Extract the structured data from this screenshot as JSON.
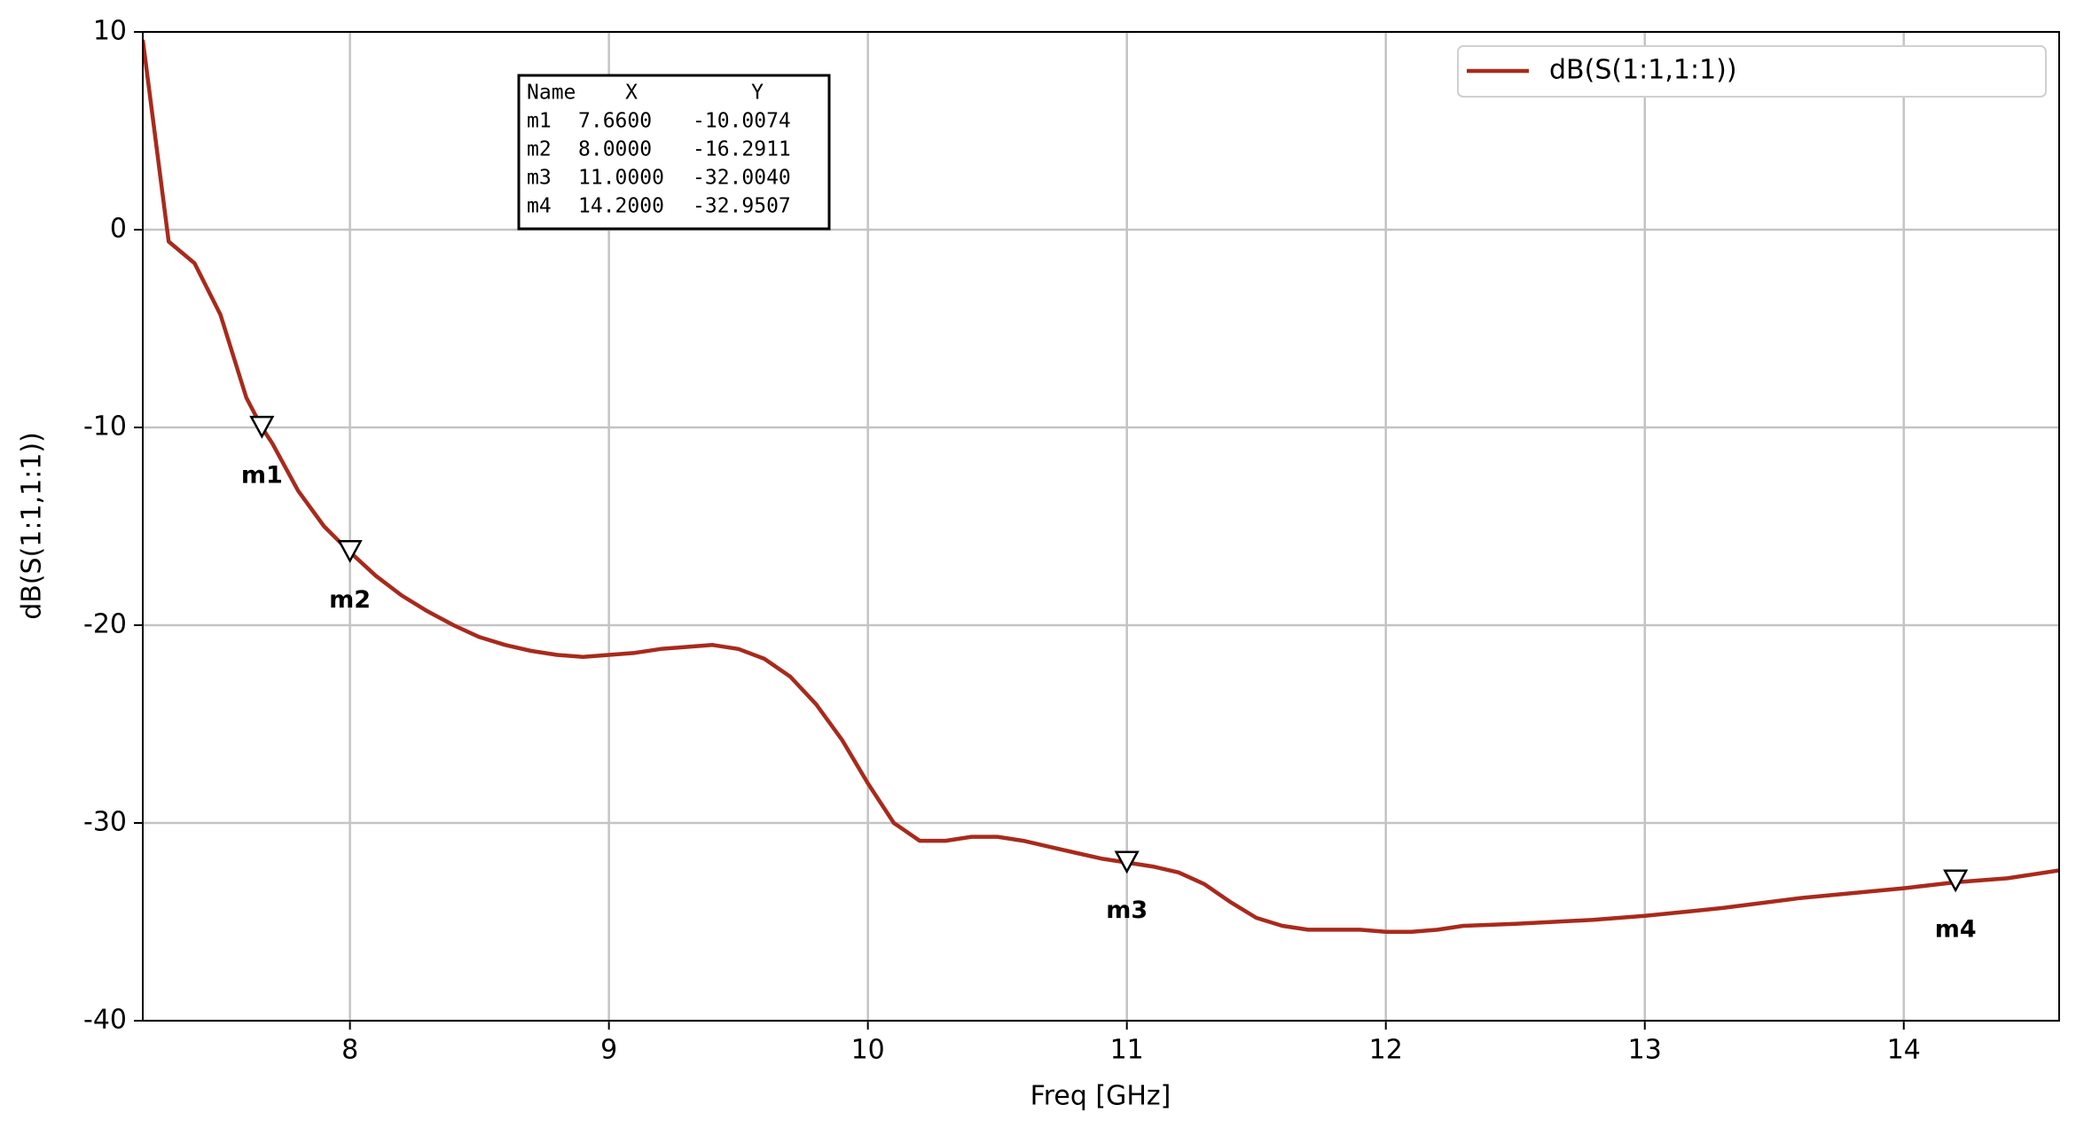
{
  "chart_data": {
    "type": "line",
    "xlabel": "Freq [GHz]",
    "ylabel": "dB(S(1:1,1:1))",
    "x": [
      7.2,
      7.3,
      7.4,
      7.5,
      7.6,
      7.66,
      7.7,
      7.8,
      7.9,
      8.0,
      8.1,
      8.2,
      8.3,
      8.4,
      8.5,
      8.6,
      8.7,
      8.8,
      8.9,
      9.0,
      9.1,
      9.2,
      9.3,
      9.4,
      9.5,
      9.6,
      9.7,
      9.8,
      9.9,
      10.0,
      10.1,
      10.2,
      10.3,
      10.4,
      10.5,
      10.6,
      10.7,
      10.8,
      10.9,
      11.0,
      11.1,
      11.2,
      11.3,
      11.4,
      11.5,
      11.6,
      11.7,
      11.8,
      11.9,
      12.0,
      12.1,
      12.2,
      12.3,
      12.5,
      12.8,
      13.0,
      13.3,
      13.6,
      14.0,
      14.2,
      14.4,
      14.6
    ],
    "series": [
      {
        "name": "dB(S(1:1,1:1))",
        "color": "#a82a1c",
        "values": [
          9.6,
          -0.6,
          -1.7,
          -4.3,
          -8.5,
          -10.0,
          -10.8,
          -13.2,
          -15.0,
          -16.3,
          -17.5,
          -18.5,
          -19.3,
          -20.0,
          -20.6,
          -21.0,
          -21.3,
          -21.5,
          -21.6,
          -21.5,
          -21.4,
          -21.2,
          -21.1,
          -21.0,
          -21.2,
          -21.7,
          -22.6,
          -24.0,
          -25.8,
          -28.0,
          -30.0,
          -30.9,
          -30.9,
          -30.7,
          -30.7,
          -30.9,
          -31.2,
          -31.5,
          -31.8,
          -32.0,
          -32.2,
          -32.5,
          -33.1,
          -34.0,
          -34.8,
          -35.2,
          -35.4,
          -35.4,
          -35.4,
          -35.5,
          -35.5,
          -35.4,
          -35.2,
          -35.1,
          -34.9,
          -34.7,
          -34.3,
          -33.8,
          -33.3,
          -33.0,
          -32.8,
          -32.4
        ]
      }
    ],
    "xlim": [
      7.2,
      14.6
    ],
    "xticks": [
      8,
      9,
      10,
      11,
      12,
      13,
      14
    ],
    "ylim": [
      -40,
      10
    ],
    "yticks": [
      -40,
      -30,
      -20,
      -10,
      0,
      10
    ],
    "grid": true,
    "legend": "upper right",
    "marker_table": {
      "columns": [
        "Name",
        "X",
        "Y"
      ]
    },
    "markers": [
      {
        "name": "m1",
        "x": 7.66,
        "y": -10.0074,
        "x_label": "7.6600",
        "y_label": "-10.0074"
      },
      {
        "name": "m2",
        "x": 8.0,
        "y": -16.2911,
        "x_label": "8.0000",
        "y_label": "-16.2911"
      },
      {
        "name": "m3",
        "x": 11.0,
        "y": -32.004,
        "x_label": "11.0000",
        "y_label": "-32.0040"
      },
      {
        "name": "m4",
        "x": 14.2,
        "y": -32.9507,
        "x_label": "14.2000",
        "y_label": "-32.9507"
      }
    ]
  }
}
